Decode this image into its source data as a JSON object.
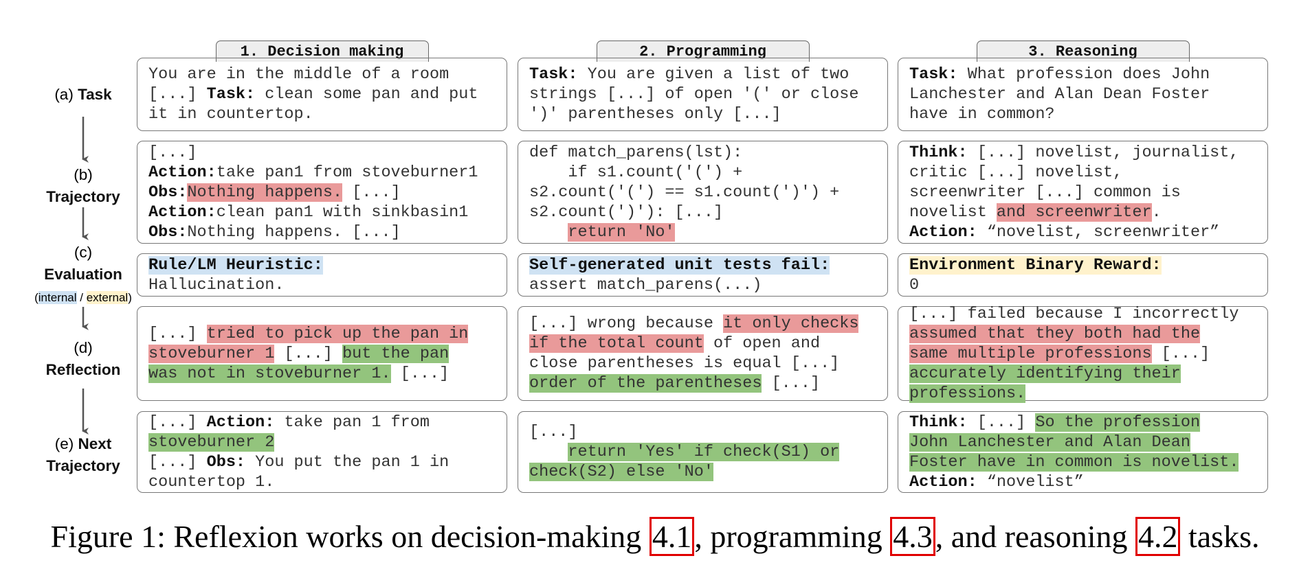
{
  "headers": [
    "1. Decision making",
    "2. Programming",
    "3. Reasoning"
  ],
  "rows": [
    {
      "label": [
        [
          "(a) ",
          {
            "text": "Task",
            "style": "bold"
          }
        ]
      ],
      "cells": [
        [
          [
            "You are in the middle of a room"
          ],
          [
            "[...] ",
            {
              "text": "Task:",
              "style": "bold"
            },
            " clean some pan and put"
          ],
          [
            "it in countertop."
          ]
        ],
        [
          [
            {
              "text": "Task:",
              "style": "bold"
            },
            " You are given a list of two"
          ],
          [
            "strings [...] of open '(' or close"
          ],
          [
            "')' parentheses only [...]"
          ]
        ],
        [
          [
            {
              "text": "Task:",
              "style": "bold"
            },
            " What profession does John"
          ],
          [
            "Lanchester and Alan Dean Foster"
          ],
          [
            "have in common?"
          ]
        ]
      ]
    },
    {
      "label": [
        [
          "(b)"
        ],
        [
          {
            "text": "Trajectory",
            "style": "bold"
          }
        ]
      ],
      "cells": [
        [
          [
            "[...]"
          ],
          [
            {
              "text": "Action:",
              "style": "bold"
            },
            "take pan1 from stoveburner1"
          ],
          [
            {
              "text": "Obs:",
              "style": "bold"
            },
            {
              "text": "Nothing happens.",
              "style": "red"
            },
            " [...]"
          ],
          [
            {
              "text": "Action:",
              "style": "bold"
            },
            "clean pan1 with sinkbasin1"
          ],
          [
            {
              "text": "Obs:",
              "style": "bold"
            },
            "Nothing happens. [...]"
          ]
        ],
        [
          [
            "def match_parens(lst):"
          ],
          [
            "    if s1.count('(') +"
          ],
          [
            "s2.count('(') == s1.count(')') +"
          ],
          [
            "s2.count(')'): [...]"
          ],
          [
            "    ",
            {
              "text": "return 'No'",
              "style": "red"
            }
          ]
        ],
        [
          [
            {
              "text": "Think:",
              "style": "bold"
            },
            " [...] novelist, journalist,"
          ],
          [
            "critic [...] novelist,"
          ],
          [
            "screenwriter [...] common is"
          ],
          [
            "novelist ",
            {
              "text": "and screenwriter",
              "style": "red"
            },
            "."
          ],
          [
            {
              "text": "Action:",
              "style": "bold"
            },
            " “novelist, screenwriter”"
          ]
        ]
      ]
    },
    {
      "label": [
        [
          "(c)"
        ],
        [
          {
            "text": "Evaluation",
            "style": "bold"
          }
        ],
        [
          "(",
          {
            "text": "internal",
            "style": "blue"
          },
          " / ",
          {
            "text": "external",
            "style": "yellow"
          },
          ")"
        ]
      ],
      "cells": [
        [
          [
            {
              "text": "Rule/LM Heuristic:",
              "style": "bold blue"
            }
          ],
          [
            "Hallucination."
          ]
        ],
        [
          [
            {
              "text": "Self-generated unit tests fail:",
              "style": "bold blue"
            }
          ],
          [
            "assert match_parens(...)"
          ]
        ],
        [
          [
            {
              "text": "Environment Binary Reward:",
              "style": "bold yellow"
            }
          ],
          [
            "0"
          ]
        ]
      ]
    },
    {
      "label": [
        [
          "(d)"
        ],
        [
          {
            "text": "Reflection",
            "style": "bold"
          }
        ]
      ],
      "cells": [
        [
          [
            "[...] ",
            {
              "text": "tried to pick up the pan in",
              "style": "red"
            }
          ],
          [
            {
              "text": "stoveburner 1",
              "style": "red"
            },
            " [...] ",
            {
              "text": "but the pan",
              "style": "green"
            }
          ],
          [
            {
              "text": "was not in stoveburner 1.",
              "style": "green"
            },
            " [...]"
          ]
        ],
        [
          [
            "[...] wrong because ",
            {
              "text": "it only checks",
              "style": "red"
            }
          ],
          [
            {
              "text": "if the total count",
              "style": "red"
            },
            " of open and"
          ],
          [
            "close parentheses is equal [...]"
          ],
          [
            {
              "text": "order of the parentheses",
              "style": "green"
            },
            " [...]"
          ]
        ],
        [
          [
            "[...] failed because I incorrectly"
          ],
          [
            {
              "text": "assumed that they both had the",
              "style": "red"
            }
          ],
          [
            {
              "text": "same multiple professions",
              "style": "red"
            },
            " [...]"
          ],
          [
            {
              "text": "accurately identifying their",
              "style": "green"
            }
          ],
          [
            {
              "text": "professions.",
              "style": "green"
            }
          ]
        ]
      ]
    },
    {
      "label": [
        [
          "(e) ",
          {
            "text": "Next",
            "style": "bold"
          }
        ],
        [
          {
            "text": "Trajectory",
            "style": "bold"
          }
        ]
      ],
      "cells": [
        [
          [
            "[...] ",
            {
              "text": "Action:",
              "style": "bold"
            },
            " take pan 1 from"
          ],
          [
            {
              "text": "stoveburner 2",
              "style": "green"
            }
          ],
          [
            "[...] ",
            {
              "text": "Obs:",
              "style": "bold"
            },
            " You put the pan 1 in"
          ],
          [
            "countertop 1."
          ]
        ],
        [
          [
            "[...]"
          ],
          [
            "    ",
            {
              "text": "return 'Yes' if check(S1) or",
              "style": "green"
            }
          ],
          [
            {
              "text": "check(S2) else 'No'",
              "style": "green"
            }
          ]
        ],
        [
          [
            {
              "text": "Think:",
              "style": "bold"
            },
            " [...] ",
            {
              "text": "So the profession",
              "style": "green"
            }
          ],
          [
            {
              "text": "John Lanchester and Alan Dean",
              "style": "green"
            }
          ],
          [
            {
              "text": "Foster have in common is novelist.",
              "style": "green"
            }
          ],
          [
            {
              "text": "Action:",
              "style": "bold"
            },
            " “novelist”"
          ]
        ]
      ]
    }
  ],
  "caption": [
    "Figure 1: Reflexion works on decision-making ",
    {
      "text": "4.1",
      "style": "box"
    },
    ", programming ",
    {
      "text": "4.3",
      "style": "box"
    },
    ", and reasoning ",
    {
      "text": "4.2",
      "style": "box"
    },
    " tasks."
  ]
}
